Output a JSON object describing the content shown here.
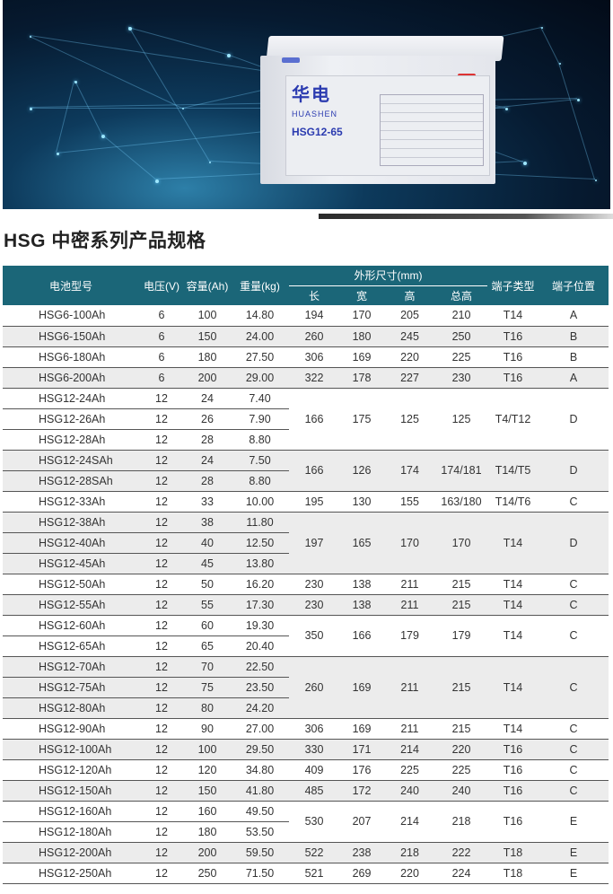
{
  "banner": {
    "brand": "华电",
    "brand_sub": "HUASHEN",
    "model": "HSG12-65"
  },
  "title": "HSG 中密系列产品规格",
  "table": {
    "headers": {
      "model": "电池型号",
      "voltage": "电压(V)",
      "capacity": "容量(Ah)",
      "weight": "重量(kg)",
      "dims": "外形尺寸(mm)",
      "length": "长",
      "width": "宽",
      "height": "高",
      "total_height": "总高",
      "terminal_type": "端子类型",
      "terminal_pos": "端子位置"
    },
    "groups": [
      {
        "rows": [
          [
            "HSG6-100Ah",
            "6",
            "100",
            "14.80"
          ]
        ],
        "dims": [
          "194",
          "170",
          "205",
          "210"
        ],
        "type": "T14",
        "pos": "A"
      },
      {
        "rows": [
          [
            "HSG6-150Ah",
            "6",
            "150",
            "24.00"
          ]
        ],
        "dims": [
          "260",
          "180",
          "245",
          "250"
        ],
        "type": "T16",
        "pos": "B"
      },
      {
        "rows": [
          [
            "HSG6-180Ah",
            "6",
            "180",
            "27.50"
          ]
        ],
        "dims": [
          "306",
          "169",
          "220",
          "225"
        ],
        "type": "T16",
        "pos": "B"
      },
      {
        "rows": [
          [
            "HSG6-200Ah",
            "6",
            "200",
            "29.00"
          ]
        ],
        "dims": [
          "322",
          "178",
          "227",
          "230"
        ],
        "type": "T16",
        "pos": "A"
      },
      {
        "rows": [
          [
            "HSG12-24Ah",
            "12",
            "24",
            "7.40"
          ],
          [
            "HSG12-26Ah",
            "12",
            "26",
            "7.90"
          ],
          [
            "HSG12-28Ah",
            "12",
            "28",
            "8.80"
          ]
        ],
        "dims": [
          "166",
          "175",
          "125",
          "125"
        ],
        "type": "T4/T12",
        "pos": "D"
      },
      {
        "rows": [
          [
            "HSG12-24SAh",
            "12",
            "24",
            "7.50"
          ],
          [
            "HSG12-28SAh",
            "12",
            "28",
            "8.80"
          ]
        ],
        "dims": [
          "166",
          "126",
          "174",
          "174/181"
        ],
        "type": "T14/T5",
        "pos": "D"
      },
      {
        "rows": [
          [
            "HSG12-33Ah",
            "12",
            "33",
            "10.00"
          ]
        ],
        "dims": [
          "195",
          "130",
          "155",
          "163/180"
        ],
        "type": "T14/T6",
        "pos": "C"
      },
      {
        "rows": [
          [
            "HSG12-38Ah",
            "12",
            "38",
            "11.80"
          ],
          [
            "HSG12-40Ah",
            "12",
            "40",
            "12.50"
          ],
          [
            "HSG12-45Ah",
            "12",
            "45",
            "13.80"
          ]
        ],
        "dims": [
          "197",
          "165",
          "170",
          "170"
        ],
        "type": "T14",
        "pos": "D"
      },
      {
        "rows": [
          [
            "HSG12-50Ah",
            "12",
            "50",
            "16.20"
          ]
        ],
        "dims": [
          "230",
          "138",
          "211",
          "215"
        ],
        "type": "T14",
        "pos": "C"
      },
      {
        "rows": [
          [
            "HSG12-55Ah",
            "12",
            "55",
            "17.30"
          ]
        ],
        "dims": [
          "230",
          "138",
          "211",
          "215"
        ],
        "type": "T14",
        "pos": "C"
      },
      {
        "rows": [
          [
            "HSG12-60Ah",
            "12",
            "60",
            "19.30"
          ],
          [
            "HSG12-65Ah",
            "12",
            "65",
            "20.40"
          ]
        ],
        "dims": [
          "350",
          "166",
          "179",
          "179"
        ],
        "type": "T14",
        "pos": "C"
      },
      {
        "rows": [
          [
            "HSG12-70Ah",
            "12",
            "70",
            "22.50"
          ],
          [
            "HSG12-75Ah",
            "12",
            "75",
            "23.50"
          ],
          [
            "HSG12-80Ah",
            "12",
            "80",
            "24.20"
          ]
        ],
        "dims": [
          "260",
          "169",
          "211",
          "215"
        ],
        "type": "T14",
        "pos": "C"
      },
      {
        "rows": [
          [
            "HSG12-90Ah",
            "12",
            "90",
            "27.00"
          ]
        ],
        "dims": [
          "306",
          "169",
          "211",
          "215"
        ],
        "type": "T14",
        "pos": "C"
      },
      {
        "rows": [
          [
            "HSG12-100Ah",
            "12",
            "100",
            "29.50"
          ]
        ],
        "dims": [
          "330",
          "171",
          "214",
          "220"
        ],
        "type": "T16",
        "pos": "C"
      },
      {
        "rows": [
          [
            "HSG12-120Ah",
            "12",
            "120",
            "34.80"
          ]
        ],
        "dims": [
          "409",
          "176",
          "225",
          "225"
        ],
        "type": "T16",
        "pos": "C"
      },
      {
        "rows": [
          [
            "HSG12-150Ah",
            "12",
            "150",
            "41.80"
          ]
        ],
        "dims": [
          "485",
          "172",
          "240",
          "240"
        ],
        "type": "T16",
        "pos": "C"
      },
      {
        "rows": [
          [
            "HSG12-160Ah",
            "12",
            "160",
            "49.50"
          ],
          [
            "HSG12-180Ah",
            "12",
            "180",
            "53.50"
          ]
        ],
        "dims": [
          "530",
          "207",
          "214",
          "218"
        ],
        "type": "T16",
        "pos": "E"
      },
      {
        "rows": [
          [
            "HSG12-200Ah",
            "12",
            "200",
            "59.50"
          ]
        ],
        "dims": [
          "522",
          "238",
          "218",
          "222"
        ],
        "type": "T18",
        "pos": "E"
      },
      {
        "rows": [
          [
            "HSG12-250Ah",
            "12",
            "250",
            "71.50"
          ]
        ],
        "dims": [
          "521",
          "269",
          "220",
          "224"
        ],
        "type": "T18",
        "pos": "E"
      }
    ]
  },
  "colors": {
    "header_bg": "#1b6678",
    "alt_row": "#ececec"
  }
}
